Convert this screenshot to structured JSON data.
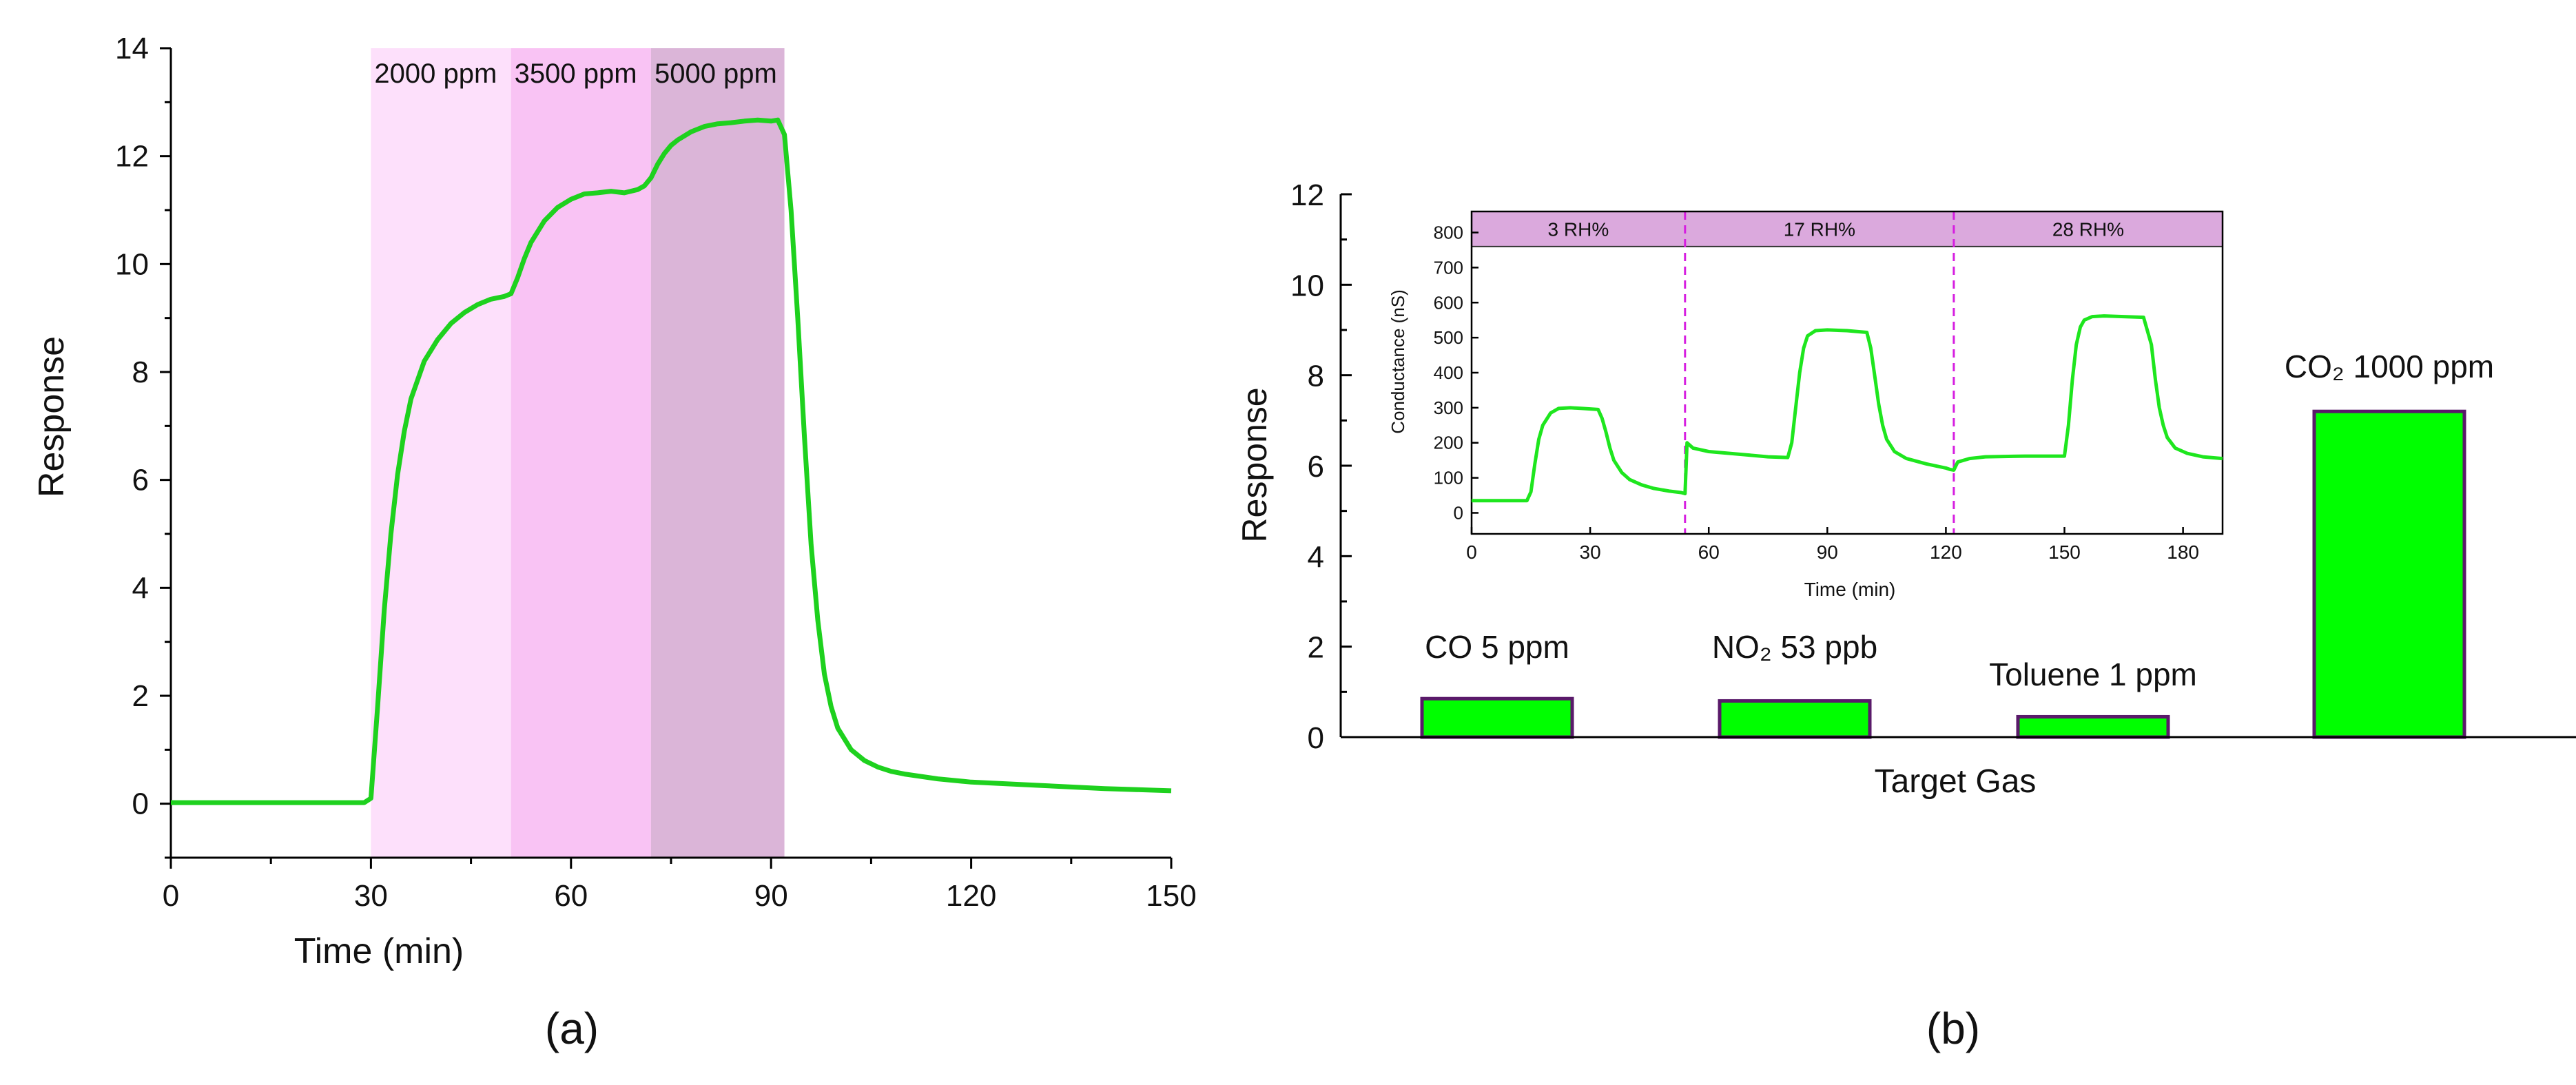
{
  "chart_data": [
    {
      "type": "line",
      "panel_label": "(a)",
      "xlabel": "Time (min)",
      "ylabel": "Response",
      "xlim": [
        0,
        150
      ],
      "ylim": [
        -1,
        14
      ],
      "xticks": [
        0,
        30,
        60,
        90,
        120,
        150
      ],
      "yticks": [
        0,
        2,
        4,
        6,
        8,
        10,
        12,
        14
      ],
      "bands": [
        {
          "label": "2000 ppm",
          "x": [
            30,
            51
          ],
          "color": "#fde0fb"
        },
        {
          "label": "3500 ppm",
          "x": [
            51,
            72
          ],
          "color": "#f9c3f4"
        },
        {
          "label": "5000 ppm",
          "x": [
            72,
            92
          ],
          "color": "#dbb5d8"
        }
      ],
      "line_color": "#1ed11e",
      "series": [
        {
          "name": "Response",
          "x": [
            0,
            29,
            30,
            31,
            32,
            33,
            34,
            35,
            36,
            38,
            40,
            42,
            44,
            46,
            48,
            50,
            51,
            52,
            53,
            54,
            56,
            58,
            60,
            62,
            64,
            66,
            68,
            70,
            71,
            72,
            73,
            74,
            75,
            76,
            78,
            80,
            82,
            84,
            86,
            88,
            90,
            91,
            92,
            93,
            94,
            95,
            96,
            97,
            98,
            99,
            100,
            102,
            104,
            106,
            108,
            110,
            115,
            120,
            130,
            140,
            150
          ],
          "y": [
            0.02,
            0.02,
            0.1,
            1.8,
            3.6,
            5.0,
            6.1,
            6.9,
            7.5,
            8.2,
            8.6,
            8.9,
            9.1,
            9.25,
            9.35,
            9.4,
            9.45,
            9.75,
            10.1,
            10.4,
            10.8,
            11.05,
            11.2,
            11.3,
            11.32,
            11.35,
            11.32,
            11.38,
            11.45,
            11.6,
            11.85,
            12.05,
            12.2,
            12.3,
            12.45,
            12.55,
            12.6,
            12.62,
            12.65,
            12.67,
            12.65,
            12.67,
            12.4,
            11.0,
            9.0,
            6.8,
            4.8,
            3.4,
            2.4,
            1.8,
            1.4,
            1.0,
            0.8,
            0.68,
            0.6,
            0.55,
            0.46,
            0.4,
            0.34,
            0.28,
            0.24
          ]
        }
      ]
    },
    {
      "type": "bar",
      "panel_label": "(b)",
      "xlabel": "Target Gas",
      "ylabel": "Response",
      "ylim": [
        0,
        12
      ],
      "yticks": [
        0,
        2,
        4,
        6,
        8,
        10,
        12
      ],
      "bar_color": "#00ff00",
      "bar_edge": "#5a1a6a",
      "categories": [
        "CO 5 ppm",
        "NO₂ 53 ppb",
        "Toluene 1 ppm",
        "CO₂ 1000 ppm"
      ],
      "values": [
        0.85,
        0.8,
        0.45,
        7.2
      ],
      "inset": {
        "type": "line",
        "xlabel": "Time (min)",
        "ylabel": "Conductance (nS)",
        "xlim": [
          0,
          190
        ],
        "ylim": [
          -60,
          860
        ],
        "xticks": [
          0,
          30,
          60,
          90,
          120,
          150,
          180
        ],
        "yticks": [
          0,
          100,
          200,
          300,
          400,
          500,
          600,
          700,
          800
        ],
        "header_color": "#dba9dd",
        "header_range": [
          760,
          860
        ],
        "divider_color": "#d61ee0",
        "dividers": [
          54,
          122
        ],
        "segments": [
          {
            "label": "3 RH%",
            "x": [
              0,
              54
            ]
          },
          {
            "label": "17 RH%",
            "x": [
              54,
              122
            ]
          },
          {
            "label": "28 RH%",
            "x": [
              122,
              190
            ]
          }
        ],
        "line_color": "#1ee61e",
        "series": [
          {
            "name": "Conductance",
            "x": [
              0,
              14,
              15,
              16,
              17,
              18,
              20,
              22,
              25,
              28,
              32,
              33,
              34,
              35,
              36,
              38,
              40,
              43,
              46,
              50,
              53,
              54,
              54.5,
              56,
              60,
              65,
              70,
              75,
              80,
              81,
              82,
              83,
              84,
              85,
              87,
              90,
              95,
              100,
              101,
              102,
              103,
              104,
              105,
              107,
              110,
              115,
              120,
              121,
              122,
              123,
              126,
              130,
              140,
              150,
              151,
              152,
              153,
              154,
              155,
              157,
              160,
              165,
              170,
              172,
              173,
              174,
              175,
              176,
              178,
              181,
              185,
              190
            ],
            "y": [
              35,
              35,
              60,
              140,
              210,
              250,
              285,
              298,
              300,
              298,
              295,
              270,
              230,
              185,
              150,
              115,
              95,
              80,
              70,
              62,
              58,
              55,
              200,
              185,
              175,
              170,
              165,
              160,
              158,
              200,
              300,
              400,
              470,
              505,
              520,
              522,
              520,
              515,
              470,
              390,
              310,
              250,
              210,
              175,
              155,
              140,
              128,
              124,
              122,
              145,
              155,
              160,
              162,
              162,
              250,
              380,
              480,
              530,
              550,
              560,
              562,
              560,
              558,
              480,
              380,
              300,
              250,
              215,
              185,
              170,
              160,
              155
            ]
          }
        ]
      }
    }
  ]
}
